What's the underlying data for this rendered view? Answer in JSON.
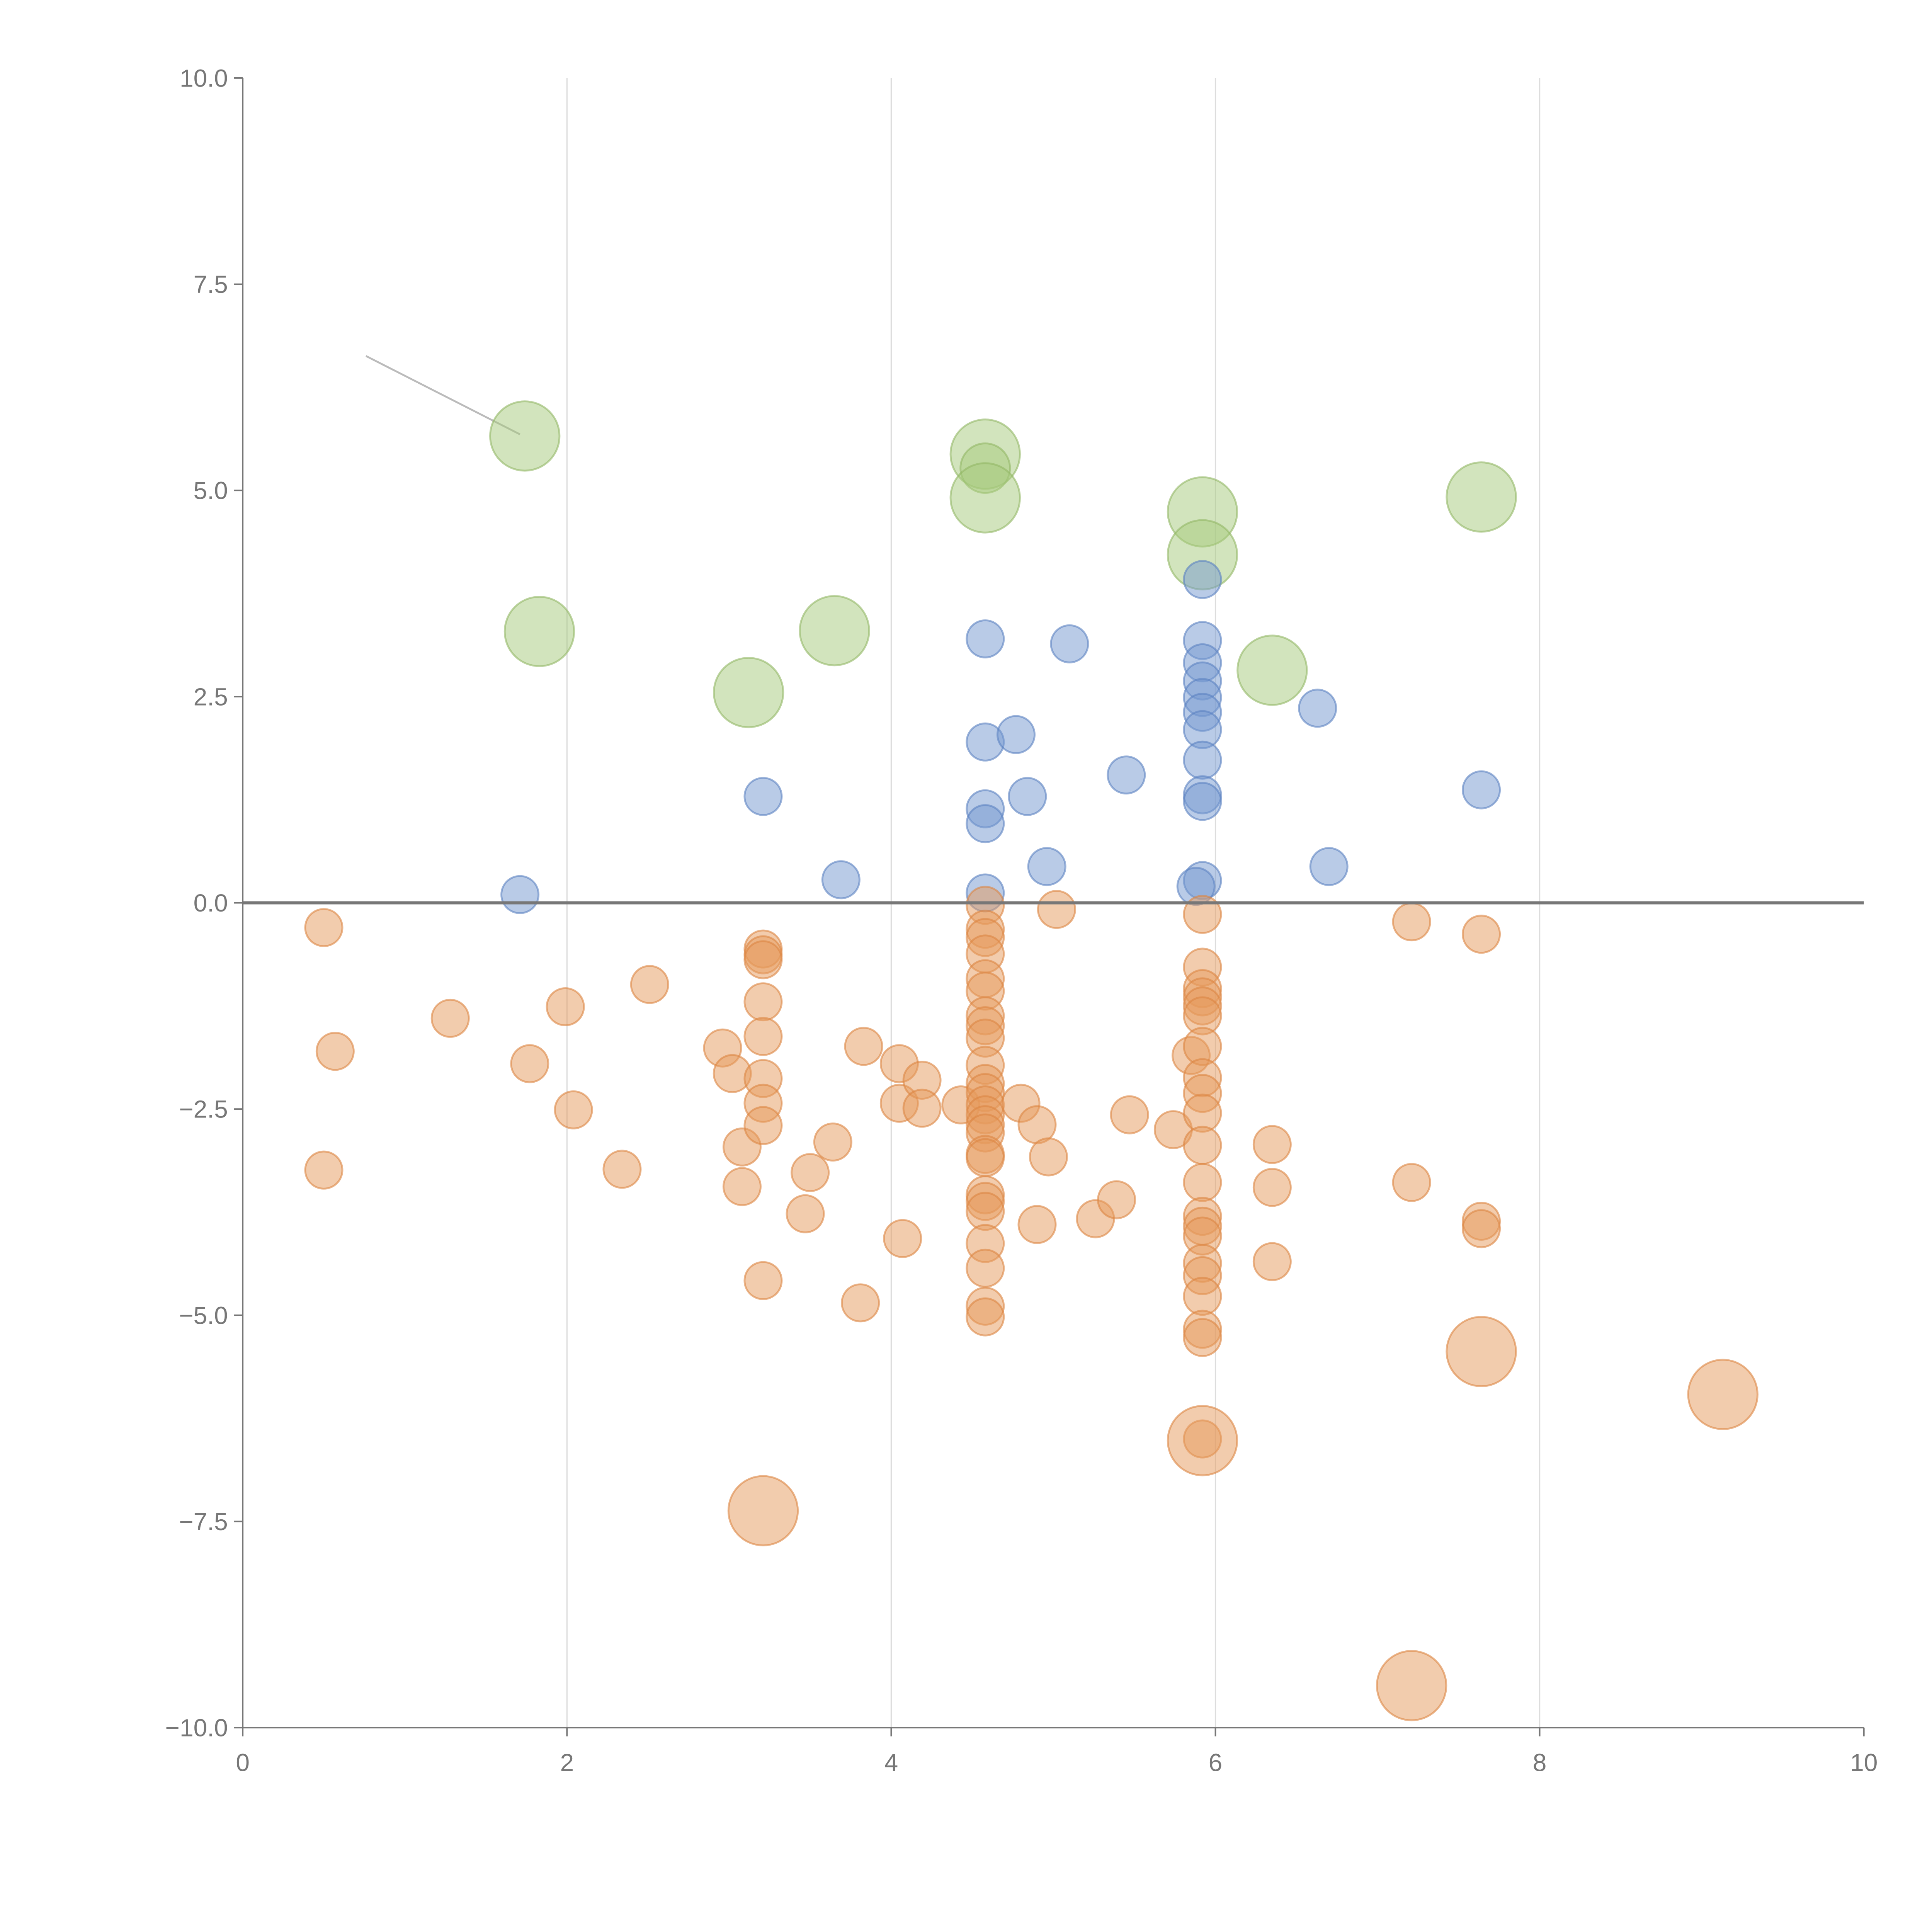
{
  "chart_data": {
    "type": "scatter",
    "title": "",
    "xlabel": "",
    "ylabel": "",
    "xlim": [
      0,
      10
    ],
    "ylim": [
      -10,
      10
    ],
    "grid": "vertical",
    "x_ticks": [
      "0",
      "2",
      "4",
      "6",
      "8",
      "10"
    ],
    "x_tick_values": [
      0,
      2,
      4,
      6,
      8,
      10
    ],
    "y_ticks": [
      "10.0",
      "7.5",
      "5.0",
      "2.5",
      "0.0",
      "−2.5",
      "−5.0",
      "−7.5",
      "−10.0"
    ],
    "y_tick_values": [
      10,
      7.5,
      5,
      2.5,
      0,
      -2.5,
      -5,
      -7.5,
      -10
    ],
    "baseline_y": 0,
    "annotation_line": {
      "from": [
        0.76,
        6.63
      ],
      "to": [
        1.71,
        5.68
      ],
      "color": "#bbbbbb"
    },
    "series": [
      {
        "color": "#a6c97c",
        "stroke": "#93b866",
        "points": [
          [
            1.74,
            5.66,
            3
          ],
          [
            1.83,
            3.29,
            3
          ],
          [
            3.12,
            2.55,
            3
          ],
          [
            3.65,
            3.3,
            3
          ],
          [
            4.58,
            5.44,
            3
          ],
          [
            4.58,
            5.27,
            1.5
          ],
          [
            4.58,
            4.91,
            3
          ],
          [
            5.92,
            4.74,
            3
          ],
          [
            5.92,
            4.22,
            3
          ],
          [
            6.35,
            2.82,
            3
          ],
          [
            7.64,
            4.92,
            3
          ]
        ]
      },
      {
        "color": "#7498d0",
        "stroke": "#5b82c2",
        "points": [
          [
            1.71,
            0.1,
            1
          ],
          [
            3.21,
            1.29,
            1
          ],
          [
            3.69,
            0.28,
            1
          ],
          [
            4.58,
            3.2,
            1
          ],
          [
            4.58,
            1.95,
            1
          ],
          [
            4.77,
            2.04,
            1
          ],
          [
            4.58,
            1.14,
            1
          ],
          [
            4.58,
            0.96,
            1
          ],
          [
            4.58,
            0.12,
            1
          ],
          [
            4.84,
            1.29,
            1
          ],
          [
            4.96,
            0.44,
            1
          ],
          [
            5.1,
            3.14,
            1
          ],
          [
            5.45,
            1.55,
            1
          ],
          [
            5.92,
            3.92,
            1
          ],
          [
            5.92,
            3.18,
            1
          ],
          [
            5.92,
            2.91,
            1
          ],
          [
            5.92,
            2.69,
            1
          ],
          [
            5.92,
            2.49,
            1
          ],
          [
            5.92,
            2.31,
            1
          ],
          [
            5.92,
            2.1,
            1
          ],
          [
            5.92,
            1.73,
            1
          ],
          [
            5.92,
            1.31,
            1
          ],
          [
            5.92,
            1.23,
            1
          ],
          [
            5.92,
            0.27,
            1
          ],
          [
            5.88,
            0.2,
            1
          ],
          [
            6.63,
            2.36,
            1
          ],
          [
            6.7,
            0.44,
            1
          ],
          [
            7.64,
            1.37,
            1
          ]
        ]
      },
      {
        "color": "#e59a5c",
        "stroke": "#dc8543",
        "points": [
          [
            0.5,
            -0.3,
            1
          ],
          [
            0.57,
            -1.8,
            1
          ],
          [
            0.5,
            -3.24,
            1
          ],
          [
            1.28,
            -1.4,
            1
          ],
          [
            1.77,
            -1.95,
            1
          ],
          [
            1.99,
            -1.26,
            1
          ],
          [
            2.04,
            -2.51,
            1
          ],
          [
            2.34,
            -3.23,
            1
          ],
          [
            2.51,
            -0.99,
            1
          ],
          [
            2.96,
            -1.76,
            1
          ],
          [
            3.02,
            -2.07,
            1
          ],
          [
            3.08,
            -2.96,
            1
          ],
          [
            3.08,
            -3.44,
            1
          ],
          [
            3.21,
            -0.56,
            1
          ],
          [
            3.21,
            -0.63,
            1
          ],
          [
            3.21,
            -0.69,
            1
          ],
          [
            3.21,
            -1.2,
            1
          ],
          [
            3.21,
            -1.62,
            1
          ],
          [
            3.21,
            -2.13,
            1
          ],
          [
            3.21,
            -2.43,
            1
          ],
          [
            3.21,
            -2.7,
            1
          ],
          [
            3.21,
            -4.58,
            1
          ],
          [
            3.47,
            -3.77,
            1
          ],
          [
            3.5,
            -3.27,
            1
          ],
          [
            3.64,
            -2.9,
            1
          ],
          [
            3.81,
            -4.85,
            1
          ],
          [
            3.83,
            -1.74,
            1
          ],
          [
            4.05,
            -1.95,
            1
          ],
          [
            4.05,
            -2.43,
            1
          ],
          [
            4.07,
            -4.07,
            1
          ],
          [
            4.19,
            -2.15,
            1
          ],
          [
            4.19,
            -2.49,
            1
          ],
          [
            4.43,
            -2.45,
            1
          ],
          [
            4.58,
            -0.03,
            1
          ],
          [
            4.58,
            -0.32,
            1
          ],
          [
            4.58,
            -0.42,
            1
          ],
          [
            4.58,
            -0.62,
            1
          ],
          [
            4.58,
            -0.92,
            1
          ],
          [
            4.58,
            -1.07,
            1
          ],
          [
            4.58,
            -1.37,
            1
          ],
          [
            4.58,
            -1.49,
            1
          ],
          [
            4.58,
            -1.64,
            1
          ],
          [
            4.58,
            -1.97,
            1
          ],
          [
            4.58,
            -2.19,
            1
          ],
          [
            4.58,
            -2.3,
            1
          ],
          [
            4.58,
            -2.45,
            1
          ],
          [
            4.58,
            -2.57,
            1
          ],
          [
            4.58,
            -2.69,
            1
          ],
          [
            4.58,
            -2.79,
            1
          ],
          [
            4.58,
            -3.05,
            1
          ],
          [
            4.58,
            -3.09,
            1
          ],
          [
            4.58,
            -3.54,
            1
          ],
          [
            4.58,
            -3.62,
            1
          ],
          [
            4.58,
            -3.74,
            1
          ],
          [
            4.58,
            -4.13,
            1
          ],
          [
            4.58,
            -4.43,
            1
          ],
          [
            4.58,
            -4.89,
            1
          ],
          [
            4.58,
            -5.02,
            1
          ],
          [
            4.8,
            -2.43,
            1
          ],
          [
            4.9,
            -2.69,
            1
          ],
          [
            4.9,
            -3.9,
            1
          ],
          [
            4.97,
            -3.08,
            1
          ],
          [
            5.02,
            -0.08,
            1
          ],
          [
            5.26,
            -3.83,
            1
          ],
          [
            5.39,
            -3.6,
            1
          ],
          [
            5.47,
            -2.57,
            1
          ],
          [
            5.74,
            -2.75,
            1
          ],
          [
            5.85,
            -1.85,
            1
          ],
          [
            5.92,
            -0.14,
            1
          ],
          [
            5.92,
            -0.78,
            1
          ],
          [
            5.92,
            -1.04,
            1
          ],
          [
            5.92,
            -1.14,
            1
          ],
          [
            5.92,
            -1.25,
            1
          ],
          [
            5.92,
            -1.37,
            1
          ],
          [
            5.92,
            -1.74,
            1
          ],
          [
            5.92,
            -2.12,
            1
          ],
          [
            5.92,
            -2.31,
            1
          ],
          [
            5.92,
            -2.55,
            1
          ],
          [
            5.92,
            -2.94,
            1
          ],
          [
            5.92,
            -3.39,
            1
          ],
          [
            5.92,
            -3.8,
            1
          ],
          [
            5.92,
            -3.92,
            1
          ],
          [
            5.92,
            -4.04,
            1
          ],
          [
            5.92,
            -4.37,
            1
          ],
          [
            5.92,
            -4.52,
            1
          ],
          [
            5.92,
            -4.77,
            1
          ],
          [
            5.92,
            -5.17,
            1
          ],
          [
            5.92,
            -5.27,
            1
          ],
          [
            5.92,
            -6.5,
            1
          ],
          [
            6.35,
            -2.93,
            1
          ],
          [
            6.35,
            -3.45,
            1
          ],
          [
            6.35,
            -4.35,
            1
          ],
          [
            7.21,
            -0.23,
            1
          ],
          [
            7.21,
            -3.39,
            1
          ],
          [
            7.64,
            -0.38,
            1
          ],
          [
            7.64,
            -3.86,
            1
          ],
          [
            7.64,
            -3.95,
            1
          ],
          [
            3.21,
            -7.37,
            3
          ],
          [
            5.92,
            -6.52,
            3
          ],
          [
            7.64,
            -5.44,
            3
          ],
          [
            9.13,
            -5.96,
            3
          ],
          [
            7.21,
            -9.49,
            3
          ]
        ]
      }
    ]
  }
}
